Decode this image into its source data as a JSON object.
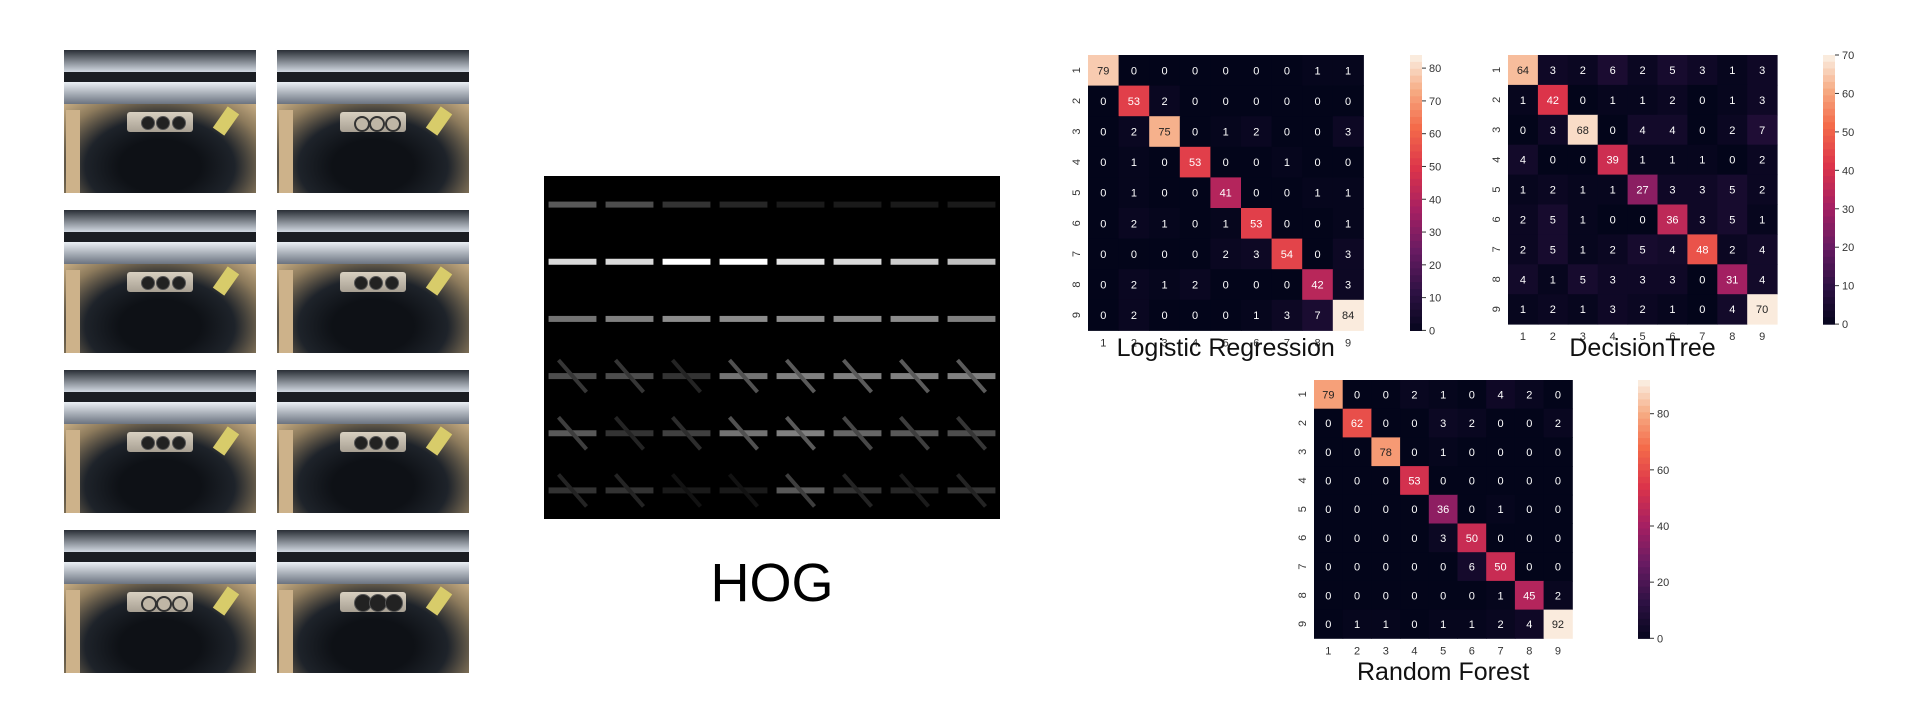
{
  "photos": [
    {
      "holes": "three-filled"
    },
    {
      "holes": "three-outline"
    },
    {
      "holes": "three-filled"
    },
    {
      "holes": "three-slotted"
    },
    {
      "holes": "three-filled"
    },
    {
      "holes": "three-small"
    },
    {
      "holes": "three-outline"
    },
    {
      "holes": "three-large-dark"
    }
  ],
  "hog_label": "HOG",
  "chart_data": [
    {
      "type": "heatmap",
      "title": "Logistic Regression",
      "categories": [
        "1",
        "2",
        "3",
        "4",
        "5",
        "6",
        "7",
        "8",
        "9"
      ],
      "colorbar": {
        "min": 0,
        "max": 84,
        "ticks": [
          0,
          10,
          20,
          30,
          40,
          50,
          60,
          70,
          80
        ]
      },
      "values": [
        [
          79,
          0,
          0,
          0,
          0,
          0,
          0,
          1,
          1
        ],
        [
          0,
          53,
          2,
          0,
          0,
          0,
          0,
          0,
          0
        ],
        [
          0,
          2,
          75,
          0,
          1,
          2,
          0,
          0,
          3
        ],
        [
          0,
          1,
          0,
          53,
          0,
          0,
          1,
          0,
          0
        ],
        [
          0,
          1,
          0,
          0,
          41,
          0,
          0,
          1,
          1
        ],
        [
          0,
          2,
          1,
          0,
          1,
          53,
          0,
          0,
          1
        ],
        [
          0,
          0,
          0,
          0,
          2,
          3,
          54,
          0,
          3
        ],
        [
          0,
          2,
          1,
          2,
          0,
          0,
          0,
          42,
          3
        ],
        [
          0,
          2,
          0,
          0,
          0,
          1,
          3,
          7,
          84
        ]
      ]
    },
    {
      "type": "heatmap",
      "title": "DecisionTree",
      "categories": [
        "1",
        "2",
        "3",
        "4",
        "5",
        "6",
        "7",
        "8",
        "9"
      ],
      "colorbar": {
        "min": 0,
        "max": 70,
        "ticks": [
          0,
          10,
          20,
          30,
          40,
          50,
          60,
          70
        ]
      },
      "values": [
        [
          64,
          3,
          2,
          6,
          2,
          5,
          3,
          1,
          3
        ],
        [
          1,
          42,
          0,
          1,
          1,
          2,
          0,
          1,
          3
        ],
        [
          0,
          3,
          68,
          0,
          4,
          4,
          0,
          2,
          7
        ],
        [
          4,
          0,
          0,
          39,
          1,
          1,
          1,
          0,
          2
        ],
        [
          1,
          2,
          1,
          1,
          27,
          3,
          3,
          5,
          2
        ],
        [
          2,
          5,
          1,
          0,
          0,
          36,
          3,
          5,
          1
        ],
        [
          2,
          5,
          1,
          2,
          5,
          4,
          48,
          2,
          4
        ],
        [
          4,
          1,
          5,
          3,
          3,
          3,
          0,
          31,
          4
        ],
        [
          1,
          2,
          1,
          3,
          2,
          1,
          0,
          4,
          70
        ]
      ]
    },
    {
      "type": "heatmap",
      "title": "Random Forest",
      "categories": [
        "1",
        "2",
        "3",
        "4",
        "5",
        "6",
        "7",
        "8",
        "9"
      ],
      "colorbar": {
        "min": 0,
        "max": 92,
        "ticks": [
          0,
          20,
          40,
          60,
          80
        ]
      },
      "values": [
        [
          79,
          0,
          0,
          2,
          1,
          0,
          4,
          2,
          0
        ],
        [
          0,
          62,
          0,
          0,
          3,
          2,
          0,
          0,
          2
        ],
        [
          0,
          0,
          78,
          0,
          1,
          0,
          0,
          0,
          0
        ],
        [
          0,
          0,
          0,
          53,
          0,
          0,
          0,
          0,
          0
        ],
        [
          0,
          0,
          0,
          0,
          36,
          0,
          1,
          0,
          0
        ],
        [
          0,
          0,
          0,
          0,
          3,
          50,
          0,
          0,
          0
        ],
        [
          0,
          0,
          0,
          0,
          0,
          6,
          50,
          0,
          0
        ],
        [
          0,
          0,
          0,
          0,
          0,
          0,
          1,
          45,
          2
        ],
        [
          0,
          1,
          1,
          0,
          1,
          1,
          2,
          4,
          92
        ]
      ]
    }
  ]
}
